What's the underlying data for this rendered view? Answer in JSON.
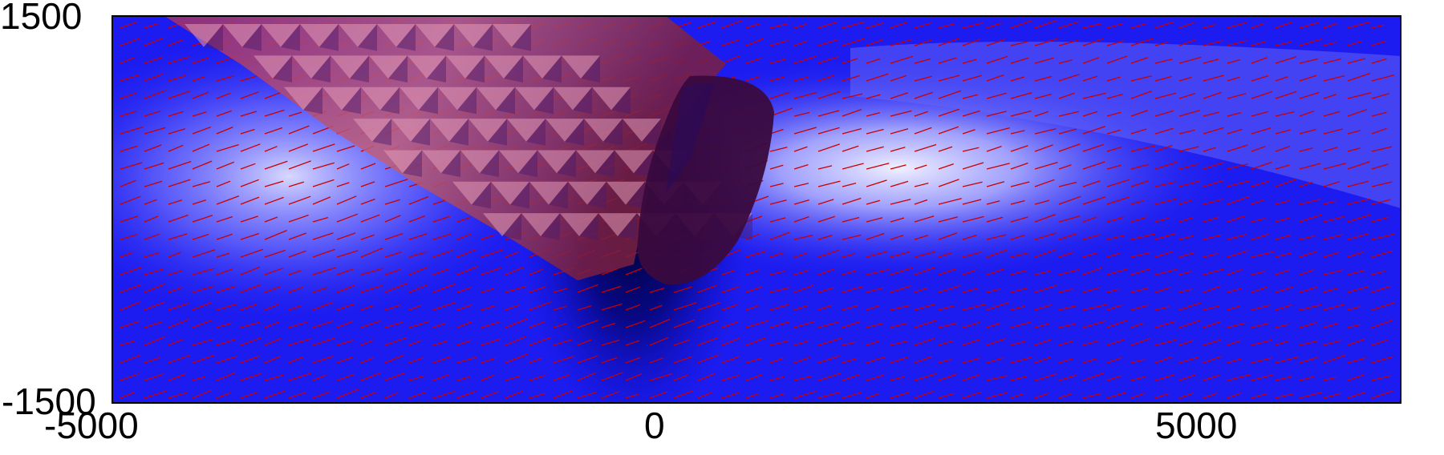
{
  "figure": {
    "x_ticks": [
      "-5000",
      "0",
      "5000"
    ],
    "y_ticks": [
      "1500",
      "-1500"
    ],
    "colors": {
      "background_blue": "#1c1cf0",
      "bright_plume": "#e8e8ff",
      "dark_core": "#02023a",
      "surface_red": "#d06a7c",
      "surface_shadow": "#6a1840",
      "vector_arrows": "#c80000",
      "axis_frame": "#000000"
    },
    "arrow_field": "red-line-vectors",
    "surface_style": "faceted-translucent"
  }
}
